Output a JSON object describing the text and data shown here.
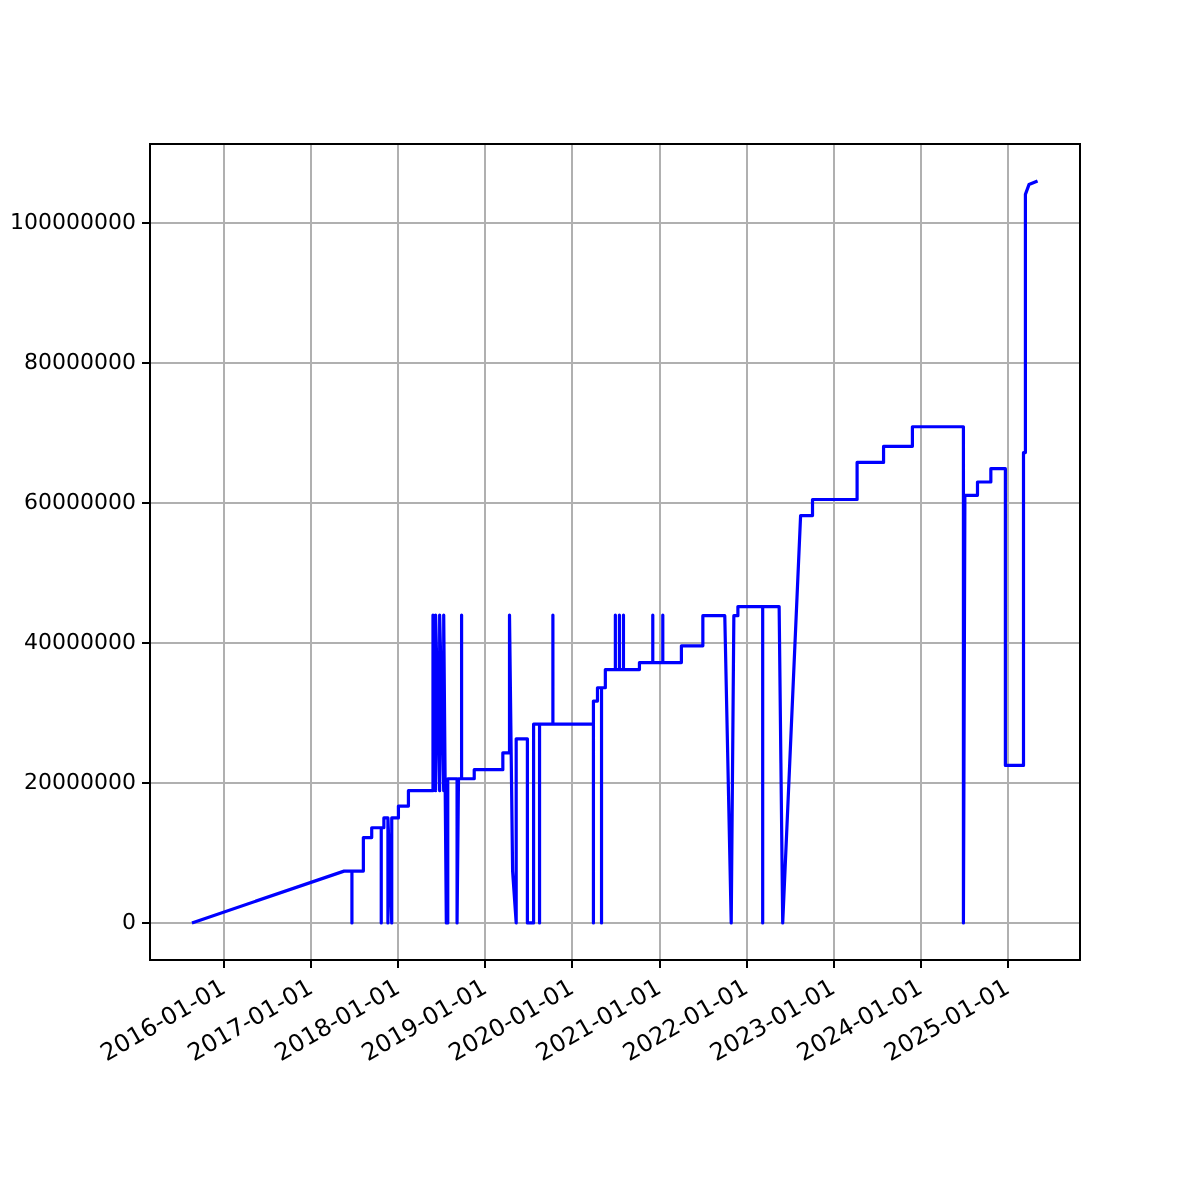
{
  "chart_data": {
    "type": "line",
    "x": [
      "2015-08-19",
      "2017-05-18",
      "2017-06-20",
      "2017-06-20",
      "2017-06-20",
      "2017-08-07",
      "2017-08-07",
      "2017-09-11",
      "2017-09-11",
      "2017-10-21",
      "2017-10-21",
      "2017-10-21",
      "2017-11-01",
      "2017-11-01",
      "2017-11-18",
      "2017-11-18",
      "2017-11-18",
      "2017-12-04",
      "2017-12-04",
      "2018-01-01",
      "2018-01-01",
      "2018-02-12",
      "2018-02-12",
      "2018-05-26",
      "2018-05-26",
      "2018-06-06",
      "2018-06-06",
      "2018-06-23",
      "2018-06-23",
      "2018-07-10",
      "2018-07-10",
      "2018-07-21",
      "2018-07-27",
      "2018-09-04",
      "2018-09-04",
      "2018-09-10",
      "2018-09-23",
      "2018-09-23",
      "2018-09-23",
      "2018-11-15",
      "2018-11-15",
      "2019-03-15",
      "2019-03-15",
      "2019-04-12",
      "2019-04-12",
      "2019-04-25",
      "2019-05-10",
      "2019-05-10",
      "2019-06-26",
      "2019-06-26",
      "2019-07-22",
      "2019-07-22",
      "2019-08-16",
      "2019-08-16",
      "2019-08-16",
      "2019-10-11",
      "2019-10-11",
      "2019-10-11",
      "2020-03-29",
      "2020-03-29",
      "2020-03-29",
      "2020-04-15",
      "2020-04-15",
      "2020-05-02",
      "2020-05-02",
      "2020-05-02",
      "2020-05-18",
      "2020-05-18",
      "2020-06-29",
      "2020-06-29",
      "2020-06-29",
      "2020-07-16",
      "2020-07-16",
      "2020-07-16",
      "2020-08-02",
      "2020-08-02",
      "2020-08-02",
      "2020-10-08",
      "2020-10-08",
      "2020-12-03",
      "2020-12-03",
      "2020-12-03",
      "2021-01-14",
      "2021-01-14",
      "2021-01-14",
      "2021-04-02",
      "2021-04-02",
      "2021-07-01",
      "2021-07-01",
      "2021-10-01",
      "2021-10-28",
      "2021-11-08",
      "2021-11-25",
      "2021-11-25",
      "2022-03-09",
      "2022-03-09",
      "2022-03-09",
      "2022-05-17",
      "2022-06-01",
      "2022-08-15",
      "2022-10-04",
      "2022-10-04",
      "2023-04-09",
      "2023-04-09",
      "2023-07-29",
      "2023-07-29",
      "2023-11-27",
      "2023-11-27",
      "2024-06-28",
      "2024-06-28",
      "2024-07-04",
      "2024-07-04",
      "2024-08-26",
      "2024-08-26",
      "2024-10-21",
      "2024-10-21",
      "2024-12-21",
      "2024-12-21",
      "2025-03-07",
      "2025-03-07",
      "2025-03-15",
      "2025-03-15",
      "2025-03-30",
      "2025-05-05"
    ],
    "series": [
      {
        "color": "#0000ff",
        "values": [
          0,
          7400000,
          7400000,
          0,
          7400000,
          7400000,
          12200000,
          12200000,
          13600000,
          13600000,
          0,
          13600000,
          13600000,
          15000000,
          15000000,
          0,
          15000000,
          0,
          15000000,
          15000000,
          16700000,
          16700000,
          18900000,
          18900000,
          44000000,
          18900000,
          44000000,
          18900000,
          44000000,
          18900000,
          44000000,
          0,
          20600000,
          20600000,
          0,
          20600000,
          20600000,
          44000000,
          20600000,
          20600000,
          21900000,
          21900000,
          24300000,
          24300000,
          44000000,
          7400000,
          0,
          26300000,
          26300000,
          0,
          0,
          28400000,
          28400000,
          0,
          28400000,
          28400000,
          44000000,
          28400000,
          28400000,
          0,
          31700000,
          31700000,
          33600000,
          33600000,
          0,
          33600000,
          33600000,
          36200000,
          36200000,
          44000000,
          36200000,
          36200000,
          44000000,
          36200000,
          36200000,
          44000000,
          36200000,
          36200000,
          37200000,
          37200000,
          44000000,
          37200000,
          37200000,
          44000000,
          37200000,
          37200000,
          39600000,
          39600000,
          43900000,
          43900000,
          0,
          43900000,
          43900000,
          45200000,
          45200000,
          0,
          45200000,
          45200000,
          0,
          58200000,
          58200000,
          60500000,
          60500000,
          65800000,
          65800000,
          68100000,
          68100000,
          70900000,
          70900000,
          0,
          59300000,
          61100000,
          61100000,
          63000000,
          63000000,
          64900000,
          64900000,
          22500000,
          22500000,
          67200000,
          67200000,
          104100000,
          105500000,
          106000000
        ]
      }
    ],
    "xlim": [
      "2015-02-24",
      "2025-10-30"
    ],
    "ylim": [
      -5300000,
      111300000
    ],
    "xticks": [
      "2016-01-01",
      "2017-01-01",
      "2018-01-01",
      "2019-01-01",
      "2020-01-01",
      "2021-01-01",
      "2022-01-01",
      "2023-01-01",
      "2024-01-01",
      "2025-01-01"
    ],
    "yticks": [
      0,
      20000000,
      40000000,
      60000000,
      80000000,
      100000000
    ],
    "grid": true,
    "legend": false,
    "marker": "none",
    "line_style": "solid"
  }
}
